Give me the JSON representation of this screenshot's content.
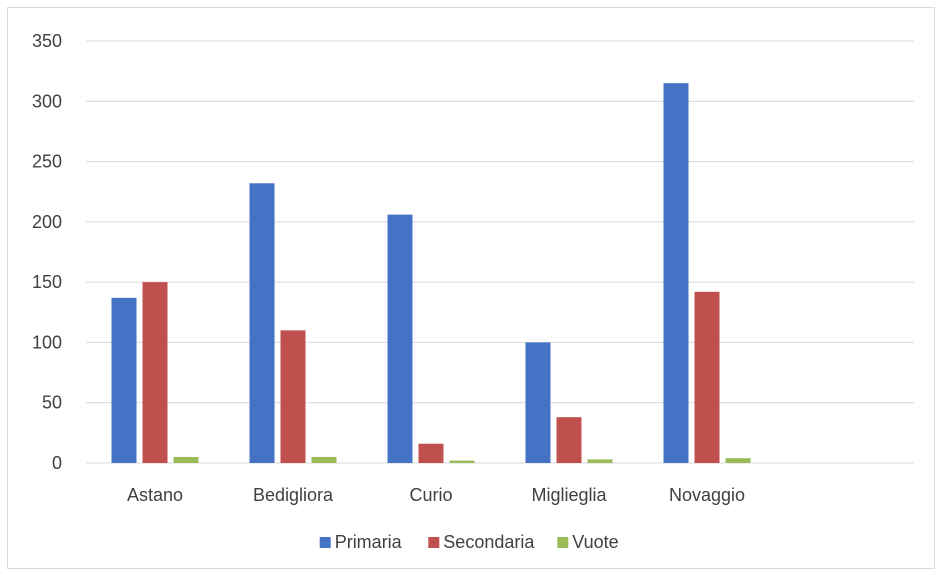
{
  "chart_data": {
    "type": "bar",
    "title": "",
    "xlabel": "",
    "ylabel": "",
    "categories": [
      "Astano",
      "Bedigliora",
      "Curio",
      "Miglieglia",
      "Novaggio",
      ""
    ],
    "series": [
      {
        "name": "Primaria",
        "color": "#4472c4",
        "values": [
          137,
          232,
          206,
          100,
          315,
          null
        ]
      },
      {
        "name": "Secondaria",
        "color": "#c0504d",
        "values": [
          150,
          110,
          16,
          38,
          142,
          null
        ]
      },
      {
        "name": "Vuote",
        "color": "#9bbb59",
        "values": [
          5,
          5,
          2,
          3,
          4,
          null
        ]
      }
    ],
    "ylim": [
      0,
      350
    ],
    "yticks": [
      0,
      50,
      100,
      150,
      200,
      250,
      300,
      350
    ],
    "grid": true,
    "legend": "bottom"
  }
}
